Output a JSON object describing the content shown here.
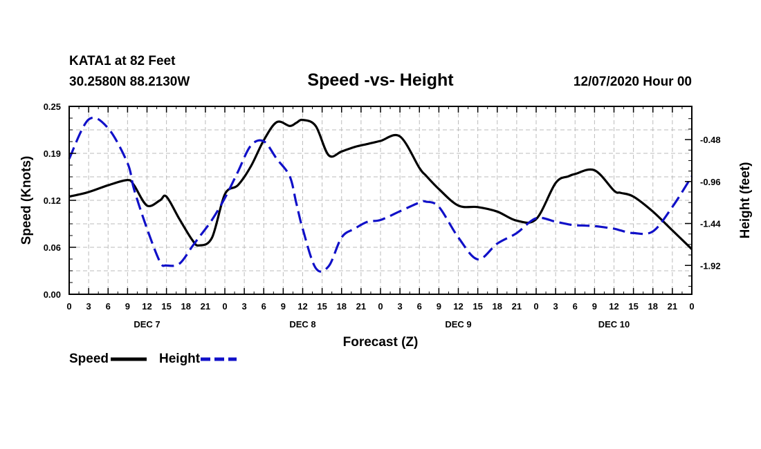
{
  "chart_data": {
    "type": "line",
    "station": "KATA1 at 82 Feet",
    "location": "30.2580N 88.2130W",
    "title": "Speed -vs- Height",
    "datetime": "12/07/2020 Hour 00",
    "xlabel": "Forecast (Z)",
    "ylabel_left": "Speed (Knots)",
    "ylabel_right": "Height (feet)",
    "xlim": [
      0,
      96
    ],
    "ylim_left": [
      0,
      0.25
    ],
    "ylim_right": [
      -2.25,
      -0.1
    ],
    "grid": true,
    "x_tick_labels": [
      "0",
      "3",
      "6",
      "9",
      "12",
      "15",
      "18",
      "21",
      "0",
      "3",
      "6",
      "9",
      "12",
      "15",
      "18",
      "21",
      "0",
      "3",
      "6",
      "9",
      "12",
      "15",
      "18",
      "21",
      "0",
      "3",
      "6",
      "9",
      "12",
      "15",
      "18",
      "21",
      "0"
    ],
    "y_ticks_left": [
      "0.00",
      "0.06",
      "0.12",
      "0.19",
      "0.25"
    ],
    "y_ticks_right": [
      "-0.48",
      "-0.96",
      "-1.44",
      "-1.92"
    ],
    "day_labels": [
      "DEC 7",
      "DEC 8",
      "DEC 9",
      "DEC 10"
    ],
    "legend": [
      "Speed",
      "Height"
    ],
    "legend_position": "bottom-left",
    "colors": {
      "speed": "#000000",
      "height": "#1010c8",
      "grid": "#bbbbbb"
    },
    "x": [
      0,
      3,
      6,
      9,
      10,
      12,
      14,
      15,
      17,
      19,
      20,
      22,
      24,
      26,
      28,
      30,
      32,
      34,
      35,
      36,
      38,
      40,
      42,
      44,
      46,
      48,
      51,
      54,
      55,
      57,
      60,
      63,
      66,
      69,
      72,
      75,
      77,
      78,
      81,
      84,
      85,
      87,
      90,
      93,
      96
    ],
    "series": [
      {
        "name": "Speed",
        "axis": "left",
        "style": "solid",
        "values": [
          0.13,
          0.136,
          0.145,
          0.152,
          0.145,
          0.118,
          0.125,
          0.13,
          0.1,
          0.072,
          0.065,
          0.075,
          0.133,
          0.145,
          0.17,
          0.205,
          0.229,
          0.224,
          0.228,
          0.232,
          0.224,
          0.185,
          0.19,
          0.196,
          0.2,
          0.204,
          0.21,
          0.168,
          0.158,
          0.14,
          0.118,
          0.116,
          0.11,
          0.098,
          0.1,
          0.148,
          0.157,
          0.16,
          0.165,
          0.138,
          0.135,
          0.13,
          0.11,
          0.085,
          0.06
        ]
      },
      {
        "name": "Height",
        "axis": "right",
        "style": "dashed",
        "values": [
          -0.7,
          -0.25,
          -0.35,
          -0.75,
          -1.05,
          -1.5,
          -1.88,
          -1.92,
          -1.9,
          -1.7,
          -1.6,
          -1.4,
          -1.15,
          -0.85,
          -0.55,
          -0.5,
          -0.7,
          -0.9,
          -1.2,
          -1.5,
          -1.95,
          -1.93,
          -1.6,
          -1.5,
          -1.42,
          -1.4,
          -1.3,
          -1.2,
          -1.19,
          -1.25,
          -1.6,
          -1.85,
          -1.67,
          -1.55,
          -1.38,
          -1.42,
          -1.45,
          -1.46,
          -1.47,
          -1.5,
          -1.52,
          -1.55,
          -1.53,
          -1.25,
          -0.9
        ]
      }
    ]
  }
}
